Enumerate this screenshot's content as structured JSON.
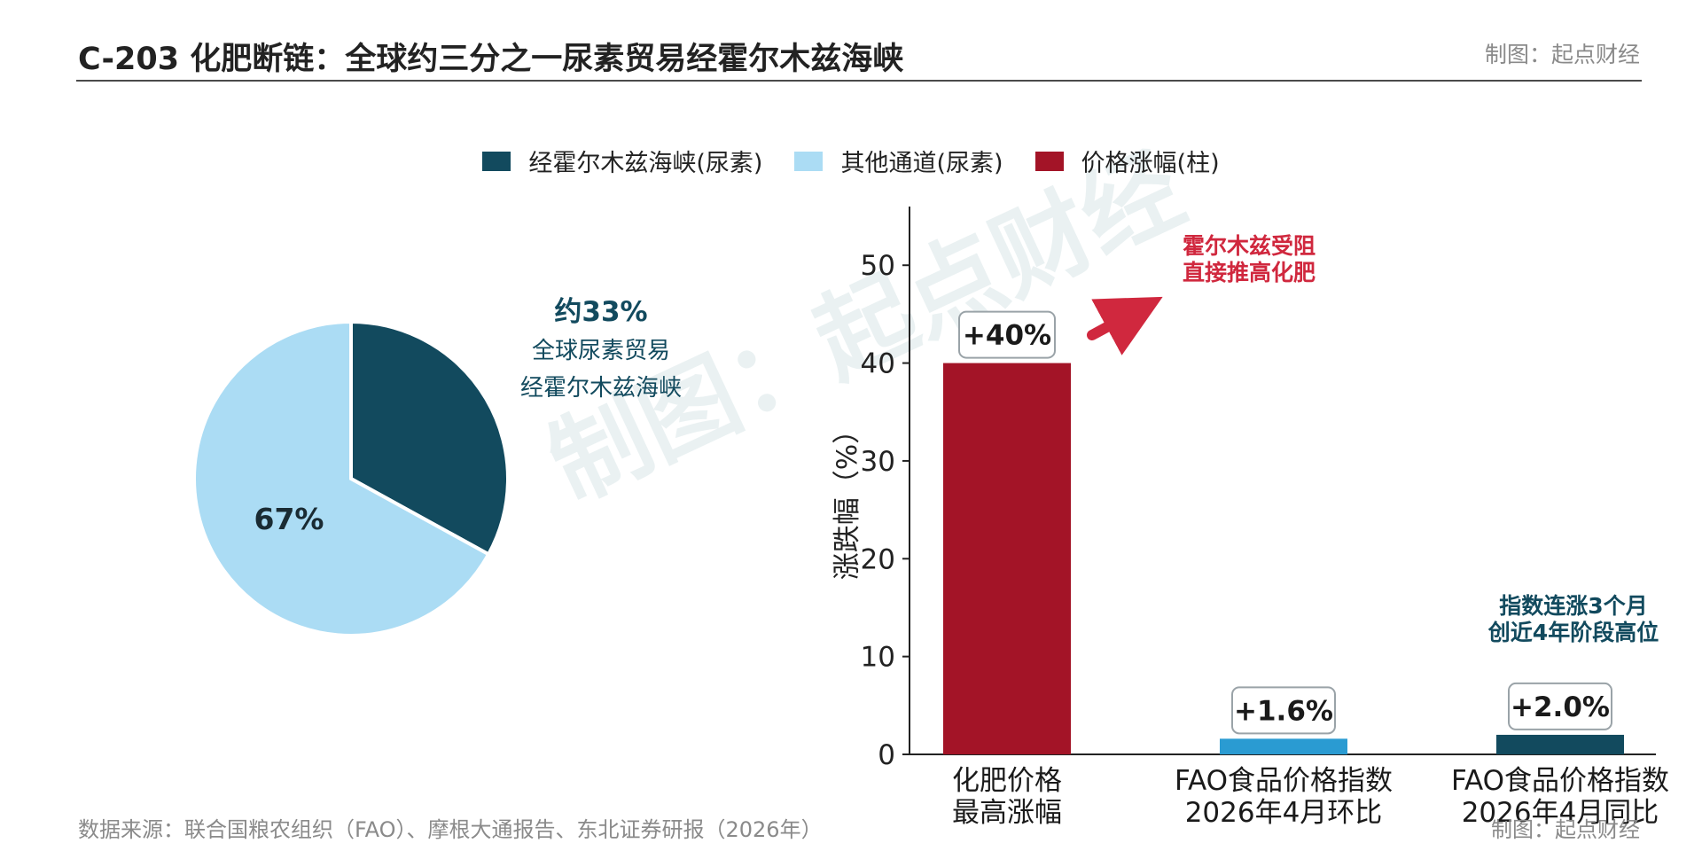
{
  "header": {
    "title": "C-203 化肥断链：全球约三分之一尿素贸易经霍尔木兹海峡",
    "credit": "制图：起点财经"
  },
  "watermark": "制图：起点财经",
  "legend": [
    {
      "label": "经霍尔木兹海峡(尿素)",
      "color": "#124a5e"
    },
    {
      "label": "其他通道(尿素)",
      "color": "#abdcf4"
    },
    {
      "label": "价格涨幅(柱)",
      "color": "#a31427"
    }
  ],
  "pie": {
    "annotation": {
      "value": "约33%",
      "line1": "全球尿素贸易",
      "line2": "经霍尔木兹海峡"
    },
    "slice_label": "67%"
  },
  "bar": {
    "ylabel": "涨跌幅（%）",
    "yticks": [
      "0",
      "10",
      "20",
      "30",
      "40",
      "50"
    ],
    "xtick_lines": [
      [
        "化肥价格",
        "最高涨幅"
      ],
      [
        "FAO食品价格指数",
        "2026年4月环比"
      ],
      [
        "FAO食品价格指数",
        "2026年4月同比"
      ]
    ],
    "data_labels": [
      "+40%",
      "+1.6%",
      "+2.0%"
    ],
    "annotation_red": [
      "霍尔木兹受阻",
      "直接推高化肥"
    ],
    "annotation_teal": [
      "指数连涨3个月",
      "创近4年阶段高位"
    ]
  },
  "chart_data": [
    {
      "type": "pie",
      "categories": [
        "经霍尔木兹海峡(尿素)",
        "其他通道(尿素)"
      ],
      "values": [
        33,
        67
      ],
      "colors": [
        "#124a5e",
        "#abdcf4"
      ]
    },
    {
      "type": "bar",
      "categories": [
        "化肥价格最高涨幅",
        "FAO食品价格指数2026年4月环比",
        "FAO食品价格指数2026年4月同比"
      ],
      "values": [
        40,
        1.6,
        2.0
      ],
      "colors": [
        "#a31427",
        "#2a9bd2",
        "#124a5e"
      ],
      "ylabel": "涨跌幅（%）",
      "ylim": [
        0,
        56
      ],
      "grid": false
    }
  ],
  "footer": {
    "source": "数据来源：联合国粮农组织（FAO）、摩根大通报告、东北证券研报（2026年）",
    "credit": "制图：起点财经"
  }
}
